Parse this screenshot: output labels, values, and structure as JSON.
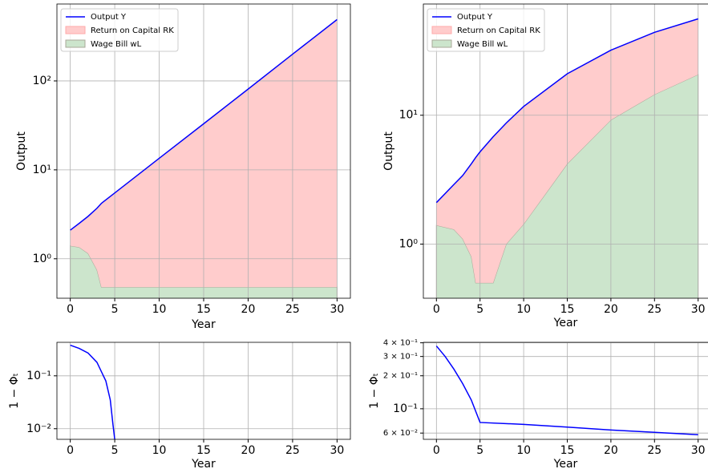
{
  "chart_data": [
    {
      "type": "area",
      "xlabel": "Year",
      "ylabel": "Output",
      "yscale": "log",
      "grid": true,
      "legend": "upper left",
      "x": [
        0,
        1,
        2,
        3,
        3.5,
        5,
        10,
        15,
        20,
        25,
        30
      ],
      "series": [
        {
          "name": "Output Y",
          "type": "line",
          "color": "#0000ff",
          "values": [
            2.1,
            2.5,
            3.0,
            3.7,
            4.2,
            5.5,
            13.5,
            33,
            81,
            200,
            490
          ]
        },
        {
          "name": "Return on Capital RK",
          "type": "area",
          "color": "#ffcccc",
          "values": [
            0.7,
            1.15,
            1.85,
            2.95,
            3.72,
            5.02,
            13.02,
            32.52,
            80.52,
            199.52,
            489.52
          ]
        },
        {
          "name": "Wage Bill wL",
          "type": "area",
          "color": "#cce5cc",
          "values": [
            1.4,
            1.35,
            1.15,
            0.75,
            0.48,
            0.48,
            0.48,
            0.48,
            0.48,
            0.48,
            0.48
          ]
        }
      ],
      "xlim": [
        -1.5,
        31.5
      ],
      "xticks": [
        0,
        5,
        10,
        15,
        20,
        25,
        30
      ],
      "ylim": [
        0.36,
        733
      ],
      "yticks": [
        {
          "value": 1,
          "label": "10⁰"
        },
        {
          "value": 10,
          "label": "10¹"
        },
        {
          "value": 100,
          "label": "10²"
        }
      ]
    },
    {
      "type": "area",
      "xlabel": "Year",
      "ylabel": "Output",
      "yscale": "log",
      "grid": true,
      "legend": "upper left",
      "x": [
        0,
        2,
        3,
        4,
        4.5,
        5,
        6.5,
        8,
        10,
        15,
        20,
        25,
        30
      ],
      "series": [
        {
          "name": "Output Y",
          "type": "line",
          "color": "#0000ff",
          "values": [
            2.1,
            2.9,
            3.4,
            4.2,
            4.7,
            5.2,
            6.8,
            8.7,
            11.7,
            21,
            32,
            44,
            56
          ]
        },
        {
          "name": "Return on Capital RK",
          "type": "area",
          "color": "#ffcccc",
          "values": [
            0.7,
            1.6,
            2.3,
            3.4,
            4.2,
            4.7,
            6.3,
            7.7,
            10.27,
            16.8,
            22.8,
            29.5,
            35.3
          ]
        },
        {
          "name": "Wage Bill wL",
          "type": "area",
          "color": "#cce5cc",
          "values": [
            1.4,
            1.3,
            1.1,
            0.8,
            0.5,
            0.5,
            0.5,
            1.0,
            1.43,
            4.2,
            9.2,
            14.5,
            20.7
          ]
        }
      ],
      "xlim": [
        -1.5,
        31.5
      ],
      "xticks": [
        0,
        5,
        10,
        15,
        20,
        25,
        30
      ],
      "ylim": [
        0.38,
        73
      ],
      "yticks": [
        {
          "value": 1,
          "label": "10⁰"
        },
        {
          "value": 10,
          "label": "10¹"
        }
      ]
    },
    {
      "type": "line",
      "xlabel": "Year",
      "ylabel": "1 − Φₜ",
      "yscale": "log",
      "grid": true,
      "x": [
        0,
        1,
        2,
        3,
        4,
        4.5,
        4.8,
        5
      ],
      "series": [
        {
          "color": "#0000ff",
          "values": [
            0.38,
            0.33,
            0.27,
            0.18,
            0.08,
            0.035,
            0.012,
            0.0063
          ]
        }
      ],
      "xlim": [
        -1.5,
        31.5
      ],
      "xticks": [
        0,
        5,
        10,
        15,
        20,
        25,
        30
      ],
      "ylim": [
        0.0063,
        0.43
      ],
      "yticks": [
        {
          "value": 0.01,
          "label": "10⁻²"
        },
        {
          "value": 0.1,
          "label": "10⁻¹"
        }
      ]
    },
    {
      "type": "line",
      "xlabel": "Year",
      "ylabel": "1 − Φₜ",
      "yscale": "log",
      "grid": true,
      "x": [
        0,
        1,
        2,
        3,
        4,
        5,
        10,
        15,
        20,
        25,
        30
      ],
      "series": [
        {
          "color": "#0000ff",
          "values": [
            0.374,
            0.3,
            0.23,
            0.17,
            0.12,
            0.075,
            0.072,
            0.068,
            0.064,
            0.061,
            0.058
          ]
        }
      ],
      "xlim": [
        -1.5,
        31.5
      ],
      "xticks": [
        0,
        5,
        10,
        15,
        20,
        25,
        30
      ],
      "ylim": [
        0.0526,
        0.404
      ],
      "yticks": [
        {
          "value": 0.06,
          "label": "6 × 10⁻²"
        },
        {
          "value": 0.1,
          "label": "10⁻¹"
        },
        {
          "value": 0.2,
          "label": "2 × 10⁻¹"
        },
        {
          "value": 0.3,
          "label": "3 × 10⁻¹"
        },
        {
          "value": 0.4,
          "label": "4 × 10⁻¹"
        }
      ]
    }
  ]
}
